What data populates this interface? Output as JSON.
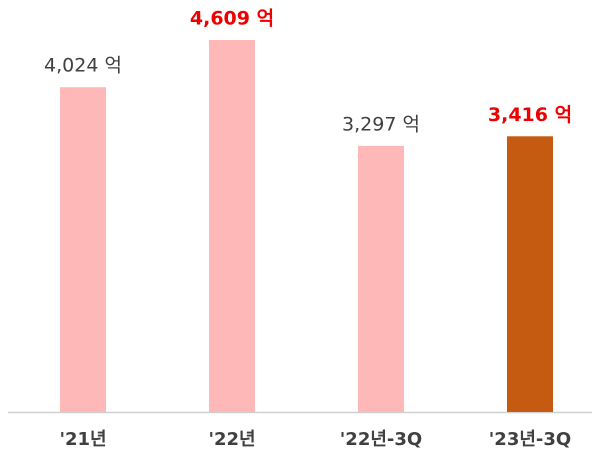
{
  "chart_data": {
    "type": "bar",
    "categories": [
      "'21년",
      "'22년",
      "'22년-3Q",
      "'23년-3Q"
    ],
    "values": [
      4024,
      4609,
      3297,
      3416
    ],
    "value_labels": [
      "4,024 억",
      "4,609 억",
      "3,297 억",
      "3,416 억"
    ],
    "colors": [
      "#ffb8b8",
      "#ffb8b8",
      "#ffb8b8",
      "#c55a11"
    ],
    "value_label_colors": [
      "#404040",
      "#ee0000",
      "#404040",
      "#ee0000"
    ],
    "value_label_bold": [
      false,
      true,
      false,
      true
    ]
  }
}
